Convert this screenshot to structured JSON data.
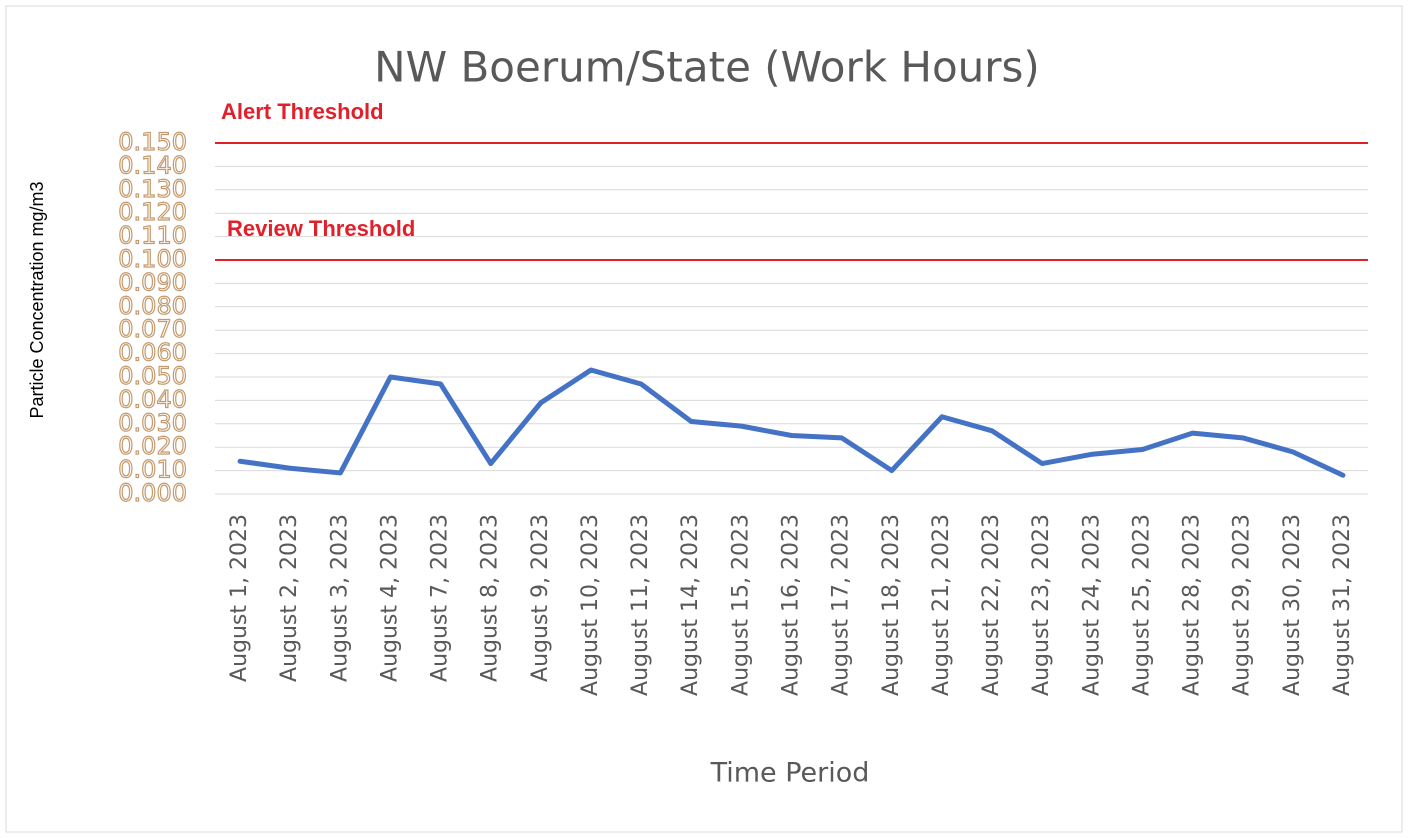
{
  "chart_data": {
    "type": "line",
    "title": "NW Boerum/State (Work Hours)",
    "x_label": "Time Period",
    "y_label": "Particle Concentration mg/m3",
    "categories": [
      "August 1, 2023",
      "August 2, 2023",
      "August 3, 2023",
      "August 4, 2023",
      "August 7, 2023",
      "August 8, 2023",
      "August 9, 2023",
      "August 10, 2023",
      "August 11, 2023",
      "August 14, 2023",
      "August 15, 2023",
      "August 16, 2023",
      "August 17, 2023",
      "August 18, 2023",
      "August 21, 2023",
      "August 22, 2023",
      "August 23, 2023",
      "August 24, 2023",
      "August 25, 2023",
      "August 28, 2023",
      "August 29, 2023",
      "August 30, 2023",
      "August 31, 2023"
    ],
    "series": [
      {
        "name": "Particle Concentration",
        "color": "#4472c4",
        "values": [
          0.014,
          0.011,
          0.009,
          0.05,
          0.047,
          0.013,
          0.039,
          0.053,
          0.047,
          0.031,
          0.029,
          0.025,
          0.024,
          0.01,
          0.033,
          0.027,
          0.013,
          0.017,
          0.019,
          0.026,
          0.024,
          0.018,
          0.008
        ]
      }
    ],
    "thresholds": [
      {
        "label": "Alert Threshold",
        "value": 0.15,
        "color": "#e0202a"
      },
      {
        "label": "Review Threshold",
        "value": 0.1,
        "color": "#e0202a"
      }
    ],
    "ylim": [
      0,
      0.15
    ],
    "yticks": [
      {
        "value": 0,
        "label": "0.000"
      },
      {
        "value": 0.01,
        "label": "0.010"
      },
      {
        "value": 0.02,
        "label": "0.020"
      },
      {
        "value": 0.03,
        "label": "0.030"
      },
      {
        "value": 0.04,
        "label": "0.040"
      },
      {
        "value": 0.05,
        "label": "0.050"
      },
      {
        "value": 0.06,
        "label": "0.060"
      },
      {
        "value": 0.07,
        "label": "0.070"
      },
      {
        "value": 0.08,
        "label": "0.080"
      },
      {
        "value": 0.09,
        "label": "0.090"
      },
      {
        "value": 0.1,
        "label": "0.100"
      },
      {
        "value": 0.11,
        "label": "0.110"
      },
      {
        "value": 0.12,
        "label": "0.120"
      },
      {
        "value": 0.13,
        "label": "0.130"
      },
      {
        "value": 0.14,
        "label": "0.140"
      },
      {
        "value": 0.15,
        "label": "0.150"
      }
    ],
    "grid": true
  }
}
